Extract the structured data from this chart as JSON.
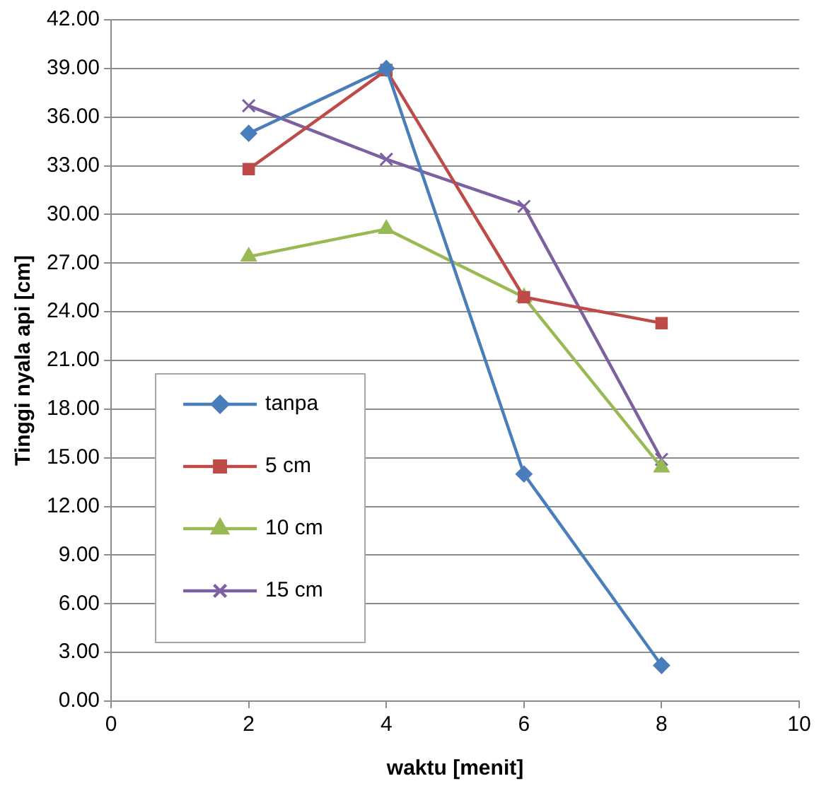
{
  "chart_data": {
    "type": "line",
    "xlabel": "waktu [menit]",
    "ylabel": "Tinggi nyala api [cm]",
    "x": [
      2,
      4,
      6,
      8
    ],
    "series": [
      {
        "name": "tanpa",
        "color": "#4a7ebb",
        "marker": "diamond",
        "values": [
          35.0,
          39.0,
          14.0,
          2.2
        ]
      },
      {
        "name": "5 cm",
        "color": "#be4b48",
        "marker": "square",
        "values": [
          32.8,
          38.9,
          24.9,
          23.3
        ]
      },
      {
        "name": "10 cm",
        "color": "#98b954",
        "marker": "triangle",
        "values": [
          27.4,
          29.1,
          24.9,
          14.4
        ]
      },
      {
        "name": "15 cm",
        "color": "#7d60a0",
        "marker": "cross",
        "values": [
          36.7,
          33.4,
          30.5,
          14.9
        ]
      }
    ],
    "xlim": [
      0,
      10
    ],
    "xticks": [
      0,
      2,
      4,
      6,
      8,
      10
    ],
    "ylim": [
      0,
      42
    ],
    "yticks": [
      {
        "value": 0,
        "label": "0.00"
      },
      {
        "value": 3,
        "label": "3.00"
      },
      {
        "value": 6,
        "label": "6.00"
      },
      {
        "value": 9,
        "label": "9.00"
      },
      {
        "value": 12,
        "label": "12.00"
      },
      {
        "value": 15,
        "label": "15.00"
      },
      {
        "value": 18,
        "label": "18.00"
      },
      {
        "value": 21,
        "label": "21.00"
      },
      {
        "value": 24,
        "label": "24.00"
      },
      {
        "value": 27,
        "label": "27.00"
      },
      {
        "value": 30,
        "label": "30.00"
      },
      {
        "value": 33,
        "label": "33.00"
      },
      {
        "value": 36,
        "label": "36.00"
      },
      {
        "value": 39,
        "label": "39.00"
      },
      {
        "value": 42,
        "label": "42.00"
      }
    ],
    "grid": "y",
    "legend": "bottom left",
    "line_style": "solid"
  }
}
